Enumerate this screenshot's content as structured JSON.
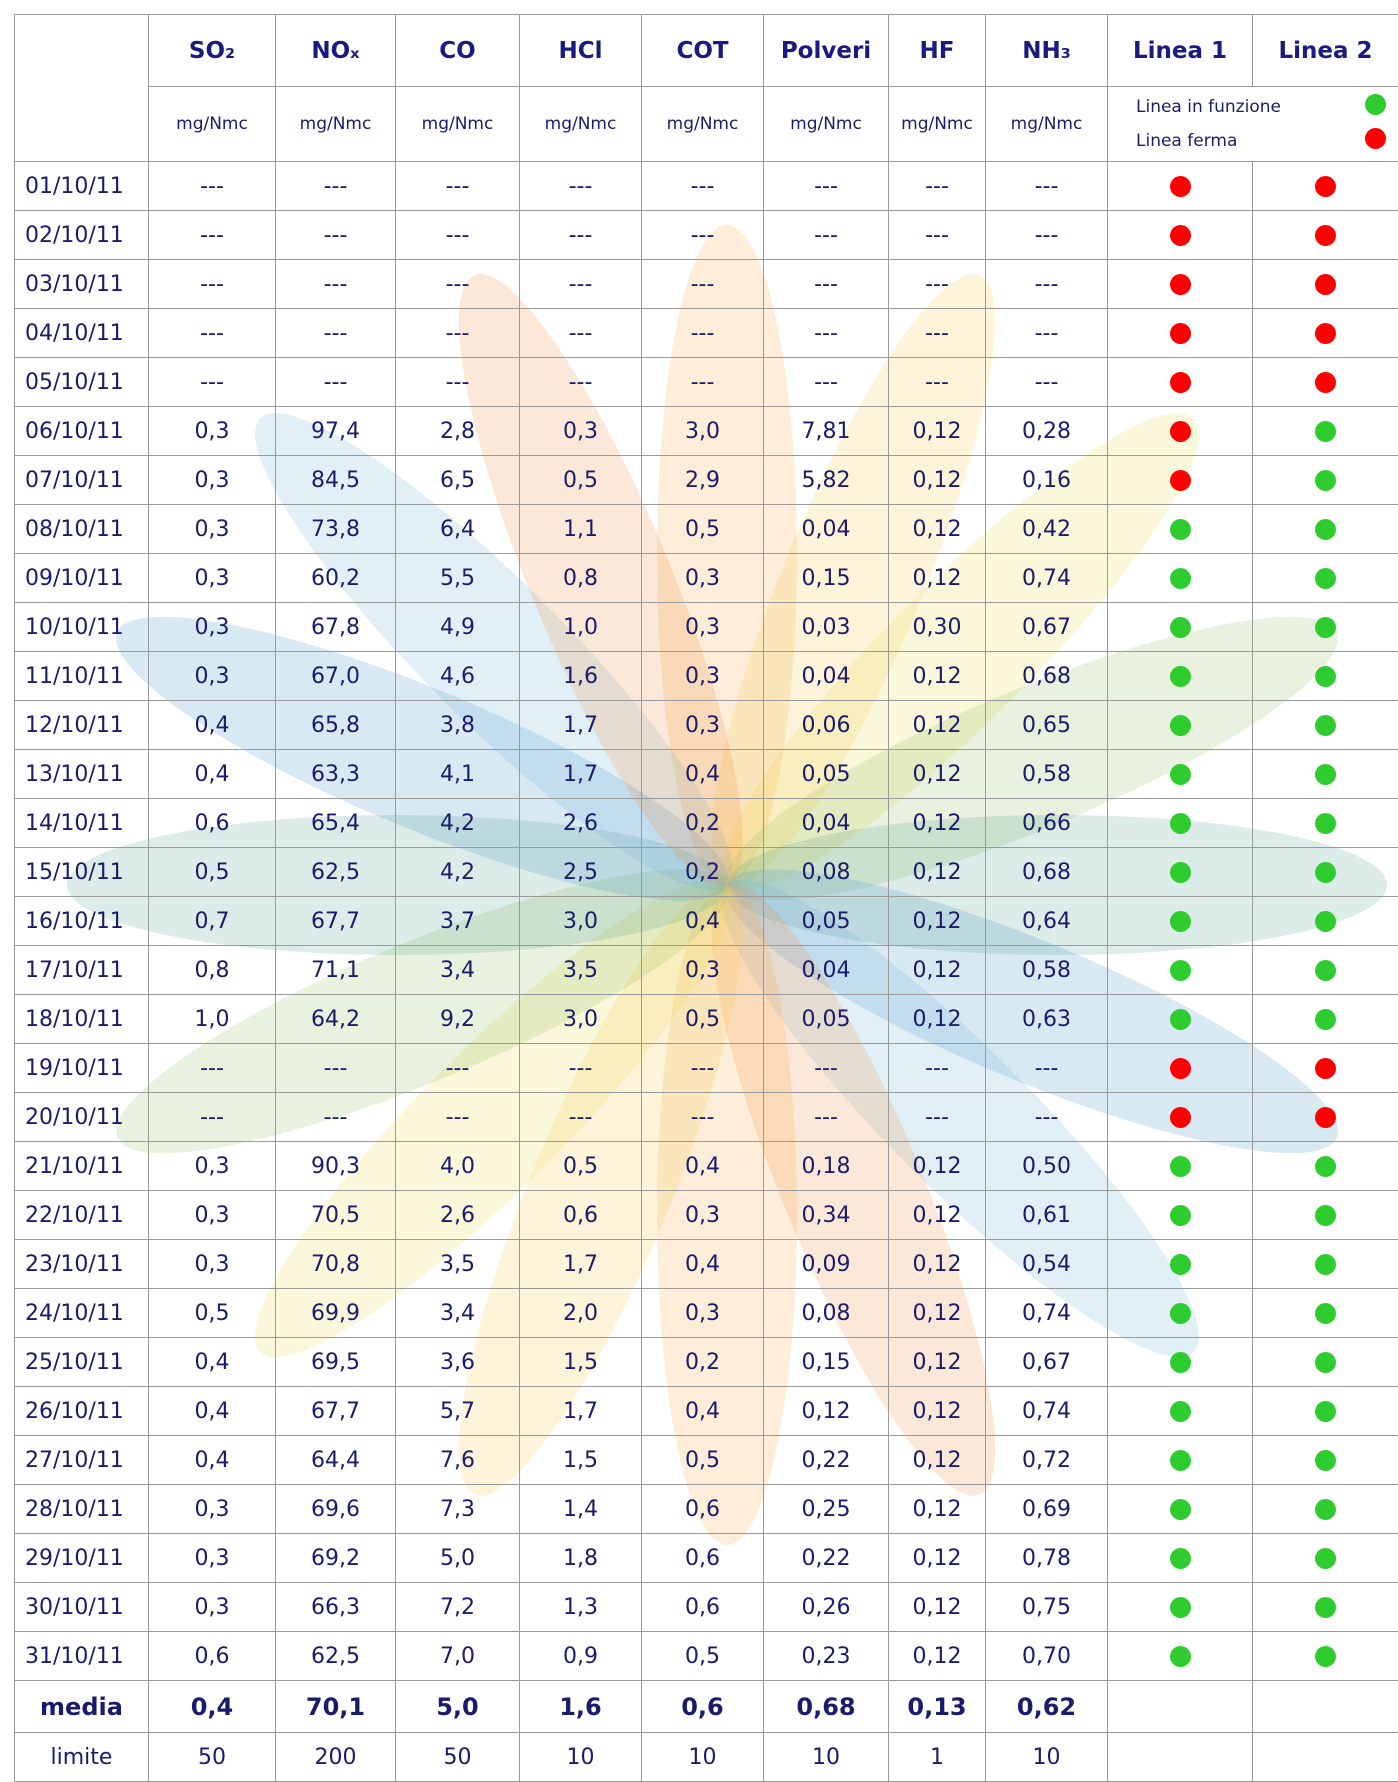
{
  "table": {
    "columns": [
      "SO₂",
      "NOₓ",
      "CO",
      "HCl",
      "COT",
      "Polveri",
      "HF",
      "NH₃",
      "Linea 1",
      "Linea 2"
    ],
    "units": [
      "mg/Nmc",
      "mg/Nmc",
      "mg/Nmc",
      "mg/Nmc",
      "mg/Nmc",
      "mg/Nmc",
      "mg/Nmc",
      "mg/Nmc"
    ],
    "legend": [
      {
        "label": "Linea in funzione",
        "color": "#2ecc2e"
      },
      {
        "label": "Linea ferma",
        "color": "#ff0000"
      }
    ],
    "rows": [
      {
        "date": "01/10/11",
        "values": [
          "---",
          "---",
          "---",
          "---",
          "---",
          "---",
          "---",
          "---"
        ],
        "status": [
          "#ff0000",
          "#ff0000"
        ]
      },
      {
        "date": "02/10/11",
        "values": [
          "---",
          "---",
          "---",
          "---",
          "---",
          "---",
          "---",
          "---"
        ],
        "status": [
          "#ff0000",
          "#ff0000"
        ]
      },
      {
        "date": "03/10/11",
        "values": [
          "---",
          "---",
          "---",
          "---",
          "---",
          "---",
          "---",
          "---"
        ],
        "status": [
          "#ff0000",
          "#ff0000"
        ]
      },
      {
        "date": "04/10/11",
        "values": [
          "---",
          "---",
          "---",
          "---",
          "---",
          "---",
          "---",
          "---"
        ],
        "status": [
          "#ff0000",
          "#ff0000"
        ]
      },
      {
        "date": "05/10/11",
        "values": [
          "---",
          "---",
          "---",
          "---",
          "---",
          "---",
          "---",
          "---"
        ],
        "status": [
          "#ff0000",
          "#ff0000"
        ]
      },
      {
        "date": "06/10/11",
        "values": [
          "0,3",
          "97,4",
          "2,8",
          "0,3",
          "3,0",
          "7,81",
          "0,12",
          "0,28"
        ],
        "status": [
          "#ff0000",
          "#2ecc2e"
        ]
      },
      {
        "date": "07/10/11",
        "values": [
          "0,3",
          "84,5",
          "6,5",
          "0,5",
          "2,9",
          "5,82",
          "0,12",
          "0,16"
        ],
        "status": [
          "#ff0000",
          "#2ecc2e"
        ]
      },
      {
        "date": "08/10/11",
        "values": [
          "0,3",
          "73,8",
          "6,4",
          "1,1",
          "0,5",
          "0,04",
          "0,12",
          "0,42"
        ],
        "status": [
          "#2ecc2e",
          "#2ecc2e"
        ]
      },
      {
        "date": "09/10/11",
        "values": [
          "0,3",
          "60,2",
          "5,5",
          "0,8",
          "0,3",
          "0,15",
          "0,12",
          "0,74"
        ],
        "status": [
          "#2ecc2e",
          "#2ecc2e"
        ]
      },
      {
        "date": "10/10/11",
        "values": [
          "0,3",
          "67,8",
          "4,9",
          "1,0",
          "0,3",
          "0,03",
          "0,30",
          "0,67"
        ],
        "status": [
          "#2ecc2e",
          "#2ecc2e"
        ]
      },
      {
        "date": "11/10/11",
        "values": [
          "0,3",
          "67,0",
          "4,6",
          "1,6",
          "0,3",
          "0,04",
          "0,12",
          "0,68"
        ],
        "status": [
          "#2ecc2e",
          "#2ecc2e"
        ]
      },
      {
        "date": "12/10/11",
        "values": [
          "0,4",
          "65,8",
          "3,8",
          "1,7",
          "0,3",
          "0,06",
          "0,12",
          "0,65"
        ],
        "status": [
          "#2ecc2e",
          "#2ecc2e"
        ]
      },
      {
        "date": "13/10/11",
        "values": [
          "0,4",
          "63,3",
          "4,1",
          "1,7",
          "0,4",
          "0,05",
          "0,12",
          "0,58"
        ],
        "status": [
          "#2ecc2e",
          "#2ecc2e"
        ]
      },
      {
        "date": "14/10/11",
        "values": [
          "0,6",
          "65,4",
          "4,2",
          "2,6",
          "0,2",
          "0,04",
          "0,12",
          "0,66"
        ],
        "status": [
          "#2ecc2e",
          "#2ecc2e"
        ]
      },
      {
        "date": "15/10/11",
        "values": [
          "0,5",
          "62,5",
          "4,2",
          "2,5",
          "0,2",
          "0,08",
          "0,12",
          "0,68"
        ],
        "status": [
          "#2ecc2e",
          "#2ecc2e"
        ]
      },
      {
        "date": "16/10/11",
        "values": [
          "0,7",
          "67,7",
          "3,7",
          "3,0",
          "0,4",
          "0,05",
          "0,12",
          "0,64"
        ],
        "status": [
          "#2ecc2e",
          "#2ecc2e"
        ]
      },
      {
        "date": "17/10/11",
        "values": [
          "0,8",
          "71,1",
          "3,4",
          "3,5",
          "0,3",
          "0,04",
          "0,12",
          "0,58"
        ],
        "status": [
          "#2ecc2e",
          "#2ecc2e"
        ]
      },
      {
        "date": "18/10/11",
        "values": [
          "1,0",
          "64,2",
          "9,2",
          "3,0",
          "0,5",
          "0,05",
          "0,12",
          "0,63"
        ],
        "status": [
          "#2ecc2e",
          "#2ecc2e"
        ]
      },
      {
        "date": "19/10/11",
        "values": [
          "---",
          "---",
          "---",
          "---",
          "---",
          "---",
          "---",
          "---"
        ],
        "status": [
          "#ff0000",
          "#ff0000"
        ]
      },
      {
        "date": "20/10/11",
        "values": [
          "---",
          "---",
          "---",
          "---",
          "---",
          "---",
          "---",
          "---"
        ],
        "status": [
          "#ff0000",
          "#ff0000"
        ]
      },
      {
        "date": "21/10/11",
        "values": [
          "0,3",
          "90,3",
          "4,0",
          "0,5",
          "0,4",
          "0,18",
          "0,12",
          "0,50"
        ],
        "status": [
          "#2ecc2e",
          "#2ecc2e"
        ]
      },
      {
        "date": "22/10/11",
        "values": [
          "0,3",
          "70,5",
          "2,6",
          "0,6",
          "0,3",
          "0,34",
          "0,12",
          "0,61"
        ],
        "status": [
          "#2ecc2e",
          "#2ecc2e"
        ]
      },
      {
        "date": "23/10/11",
        "values": [
          "0,3",
          "70,8",
          "3,5",
          "1,7",
          "0,4",
          "0,09",
          "0,12",
          "0,54"
        ],
        "status": [
          "#2ecc2e",
          "#2ecc2e"
        ]
      },
      {
        "date": "24/10/11",
        "values": [
          "0,5",
          "69,9",
          "3,4",
          "2,0",
          "0,3",
          "0,08",
          "0,12",
          "0,74"
        ],
        "status": [
          "#2ecc2e",
          "#2ecc2e"
        ]
      },
      {
        "date": "25/10/11",
        "values": [
          "0,4",
          "69,5",
          "3,6",
          "1,5",
          "0,2",
          "0,15",
          "0,12",
          "0,67"
        ],
        "status": [
          "#2ecc2e",
          "#2ecc2e"
        ]
      },
      {
        "date": "26/10/11",
        "values": [
          "0,4",
          "67,7",
          "5,7",
          "1,7",
          "0,4",
          "0,12",
          "0,12",
          "0,74"
        ],
        "status": [
          "#2ecc2e",
          "#2ecc2e"
        ]
      },
      {
        "date": "27/10/11",
        "values": [
          "0,4",
          "64,4",
          "7,6",
          "1,5",
          "0,5",
          "0,22",
          "0,12",
          "0,72"
        ],
        "status": [
          "#2ecc2e",
          "#2ecc2e"
        ]
      },
      {
        "date": "28/10/11",
        "values": [
          "0,3",
          "69,6",
          "7,3",
          "1,4",
          "0,6",
          "0,25",
          "0,12",
          "0,69"
        ],
        "status": [
          "#2ecc2e",
          "#2ecc2e"
        ]
      },
      {
        "date": "29/10/11",
        "values": [
          "0,3",
          "69,2",
          "5,0",
          "1,8",
          "0,6",
          "0,22",
          "0,12",
          "0,78"
        ],
        "status": [
          "#2ecc2e",
          "#2ecc2e"
        ]
      },
      {
        "date": "30/10/11",
        "values": [
          "0,3",
          "66,3",
          "7,2",
          "1,3",
          "0,6",
          "0,26",
          "0,12",
          "0,75"
        ],
        "status": [
          "#2ecc2e",
          "#2ecc2e"
        ]
      },
      {
        "date": "31/10/11",
        "values": [
          "0,6",
          "62,5",
          "7,0",
          "0,9",
          "0,5",
          "0,23",
          "0,12",
          "0,70"
        ],
        "status": [
          "#2ecc2e",
          "#2ecc2e"
        ]
      }
    ],
    "summary": [
      {
        "label": "media",
        "values": [
          "0,4",
          "70,1",
          "5,0",
          "1,6",
          "0,6",
          "0,68",
          "0,13",
          "0,62"
        ]
      },
      {
        "label": "limite",
        "values": [
          "50",
          "200",
          "50",
          "10",
          "10",
          "10",
          "1",
          "10"
        ]
      }
    ]
  }
}
